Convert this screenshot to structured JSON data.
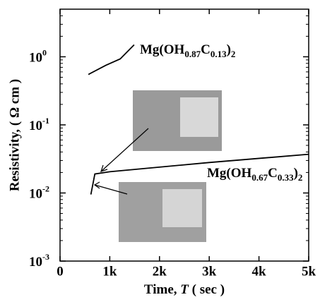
{
  "chart_data": {
    "type": "line",
    "y_label": "Resistivity, ( Ω cm )",
    "x_label_parts": [
      {
        "text": "Time, "
      },
      {
        "text": "T",
        "italic": true
      },
      {
        "text": " ( sec )"
      }
    ],
    "annotations": [
      {
        "parts": [
          {
            "text": "Mg(OH"
          },
          {
            "text": "0.87",
            "sub": true
          },
          {
            "text": "C"
          },
          {
            "text": "0.13",
            "sub": true
          },
          {
            "text": ")"
          },
          {
            "text": "2",
            "sub": true
          }
        ]
      },
      {
        "parts": [
          {
            "text": "Mg(OH"
          },
          {
            "text": "0.67",
            "sub": true
          },
          {
            "text": "C"
          },
          {
            "text": "0.33",
            "sub": true
          },
          {
            "text": ")"
          },
          {
            "text": "2",
            "sub": true
          }
        ]
      }
    ],
    "series": [
      {
        "color": "#000000",
        "x": [
          570,
          920,
          1210,
          1490
        ],
        "values": [
          0.55,
          0.75,
          0.93,
          1.5
        ]
      },
      {
        "color": "#000000",
        "x": [
          620,
          700,
          1000,
          3000,
          5000
        ],
        "values": [
          0.0095,
          0.019,
          0.0205,
          0.028,
          0.037
        ]
      }
    ],
    "log_y": true,
    "xlim": [
      0,
      5000
    ],
    "ylim": [
      0.001,
      5
    ],
    "xticks": [
      0,
      {
        "value": 1000,
        "label": "1k"
      },
      {
        "value": 2000,
        "label": "2k"
      },
      {
        "value": 3000,
        "label": "3k"
      },
      {
        "value": 4000,
        "label": "4k"
      },
      {
        "value": 5000,
        "label": "5k"
      }
    ],
    "yticks": [
      {
        "value": 0.001,
        "label": "10",
        "exponent": "-3"
      },
      {
        "value": 0.01,
        "label": "10",
        "exponent": "-2"
      },
      {
        "value": 0.1,
        "label": "10",
        "exponent": "-1"
      },
      {
        "value": 1,
        "label": "10",
        "exponent": "0"
      }
    ]
  }
}
